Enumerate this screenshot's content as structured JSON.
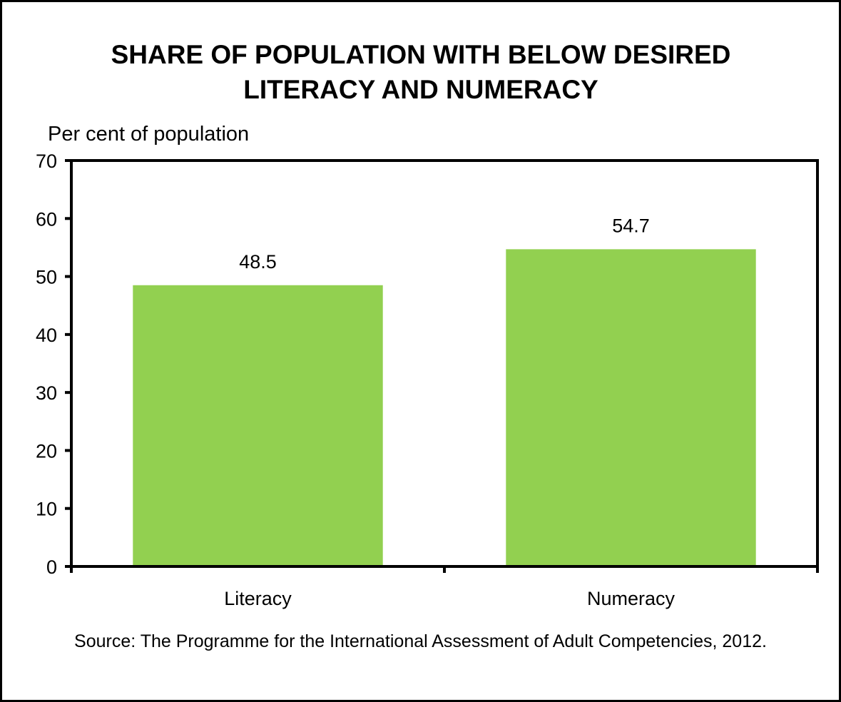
{
  "chart_data": {
    "type": "bar",
    "title": [
      "SHARE OF POPULATION WITH BELOW DESIRED",
      "LITERACY AND NUMERACY"
    ],
    "ylabel": "Per cent of population",
    "xlabel": "",
    "categories": [
      "Literacy",
      "Numeracy"
    ],
    "values": [
      48.5,
      54.7
    ],
    "data_labels": [
      "48.5",
      "54.7"
    ],
    "ylim": [
      0,
      70
    ],
    "yticks": [
      0,
      10,
      20,
      30,
      40,
      50,
      60,
      70
    ],
    "grid": false,
    "legend": "none",
    "bar_color": "#92d050"
  },
  "source": "Source: The Programme for the International Assessment of Adult Competencies, 2012."
}
